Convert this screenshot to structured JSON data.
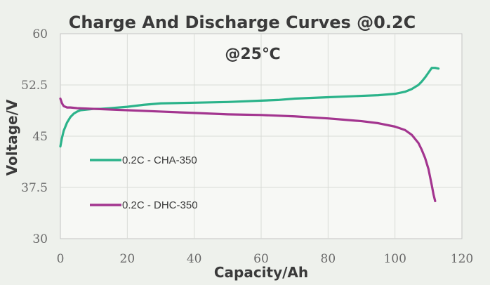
{
  "chart_data": {
    "type": "line",
    "title": "Charge And Discharge Curves @0.2C",
    "subtitle": "@25℃",
    "xlabel": "Capacity/Ah",
    "ylabel": "Voltage/V",
    "xlim": [
      0,
      120
    ],
    "ylim": [
      30,
      60
    ],
    "x_ticks": [
      "0",
      "20",
      "40",
      "60",
      "80",
      "100",
      "120"
    ],
    "y_ticks": [
      "30",
      "37.5",
      "45",
      "52.5",
      "60"
    ],
    "x_tick_values": [
      0,
      20,
      40,
      60,
      80,
      100,
      120
    ],
    "y_tick_values": [
      30,
      37.5,
      45,
      52.5,
      60
    ],
    "grid": true,
    "legend_position": "center-left",
    "series": [
      {
        "name": "0.2C - CHA-350",
        "color": "#2bb38a",
        "x": [
          0,
          0.5,
          1,
          2,
          3,
          4,
          5,
          6,
          8,
          10,
          12,
          15,
          20,
          25,
          30,
          40,
          50,
          60,
          65,
          70,
          80,
          90,
          95,
          100,
          103,
          105,
          107,
          108,
          109,
          110,
          111,
          112,
          113
        ],
        "y": [
          43.5,
          44.8,
          45.8,
          47.0,
          47.8,
          48.3,
          48.6,
          48.8,
          48.9,
          49.0,
          49.0,
          49.1,
          49.3,
          49.6,
          49.8,
          49.9,
          50.0,
          50.2,
          50.3,
          50.5,
          50.7,
          50.9,
          51.0,
          51.2,
          51.5,
          51.9,
          52.5,
          53.0,
          53.6,
          54.3,
          55.0,
          55.0,
          54.9
        ]
      },
      {
        "name": "0.2C - DHC-350",
        "color": "#a3358f",
        "x": [
          0,
          0.5,
          1,
          2,
          3,
          5,
          10,
          15,
          20,
          30,
          40,
          50,
          60,
          70,
          80,
          85,
          90,
          95,
          100,
          103,
          105,
          107,
          108,
          109,
          110,
          110.5,
          111,
          111.5,
          112
        ],
        "y": [
          50.5,
          49.8,
          49.4,
          49.2,
          49.2,
          49.1,
          49.0,
          48.9,
          48.8,
          48.6,
          48.4,
          48.2,
          48.1,
          47.9,
          47.6,
          47.4,
          47.2,
          46.9,
          46.4,
          45.9,
          45.2,
          44.0,
          43.0,
          41.8,
          40.2,
          39.0,
          37.8,
          36.5,
          35.5
        ]
      }
    ]
  }
}
